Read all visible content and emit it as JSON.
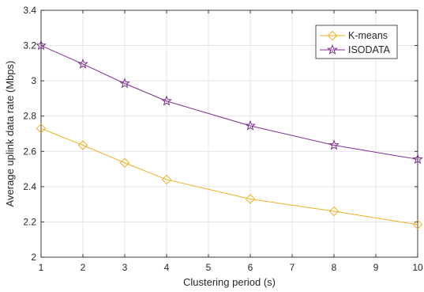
{
  "chart_data": {
    "type": "line",
    "xlabel": "Clustering period (s)",
    "ylabel": "Average uplink data rate (Mbps)",
    "xlim": [
      1,
      10
    ],
    "ylim": [
      2,
      3.4
    ],
    "xticks": [
      1,
      2,
      3,
      4,
      5,
      6,
      7,
      8,
      9,
      10
    ],
    "yticks": [
      2,
      2.2,
      2.4,
      2.6,
      2.8,
      3,
      3.2,
      3.4
    ],
    "grid": true,
    "legend_position": "top-right",
    "series": [
      {
        "name": "K-means",
        "marker": "diamond",
        "color": "#EDB120",
        "x": [
          1,
          2,
          3,
          4,
          6,
          8,
          10
        ],
        "y": [
          2.73,
          2.635,
          2.535,
          2.44,
          2.33,
          2.26,
          2.185
        ]
      },
      {
        "name": "ISODATA",
        "marker": "pentagram",
        "color": "#7E2F8E",
        "x": [
          1,
          2,
          3,
          4,
          6,
          8,
          10
        ],
        "y": [
          3.2,
          3.095,
          2.985,
          2.885,
          2.745,
          2.635,
          2.555
        ]
      }
    ]
  }
}
